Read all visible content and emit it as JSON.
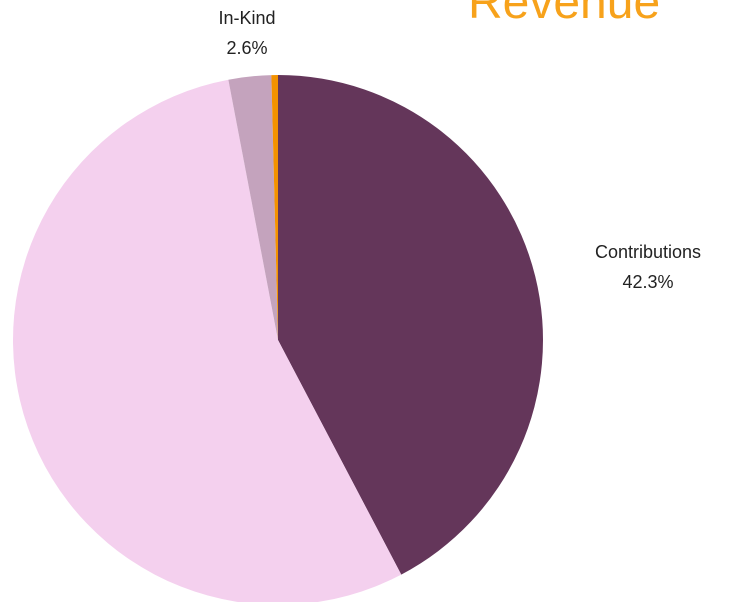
{
  "chart_data": {
    "type": "pie",
    "title": "Revenue",
    "categories": [
      "Contributions",
      null,
      "In-Kind",
      null
    ],
    "values": [
      42.3,
      54.7,
      2.6,
      0.4
    ],
    "value_labels": [
      "42.3%",
      null,
      "2.6%",
      null
    ],
    "colors": [
      "#64365a",
      "#f4d0ee",
      "#c4a3bd",
      "#f39200"
    ],
    "title_color": "#f7a21b"
  }
}
